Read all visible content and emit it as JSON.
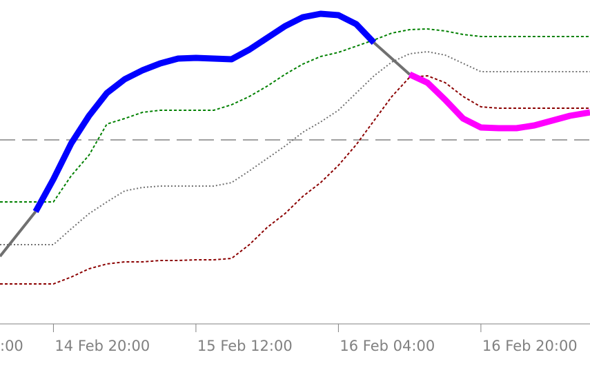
{
  "chart_data": {
    "type": "line",
    "xlim": [
      10,
      76.25
    ],
    "ylim": [
      0,
      470
    ],
    "xticks": [
      {
        "value": 0,
        "label": ":00"
      },
      {
        "value": 16,
        "label": "14 Feb 20:00"
      },
      {
        "value": 32,
        "label": "15 Feb 12:00"
      },
      {
        "value": 48,
        "label": "16 Feb 04:00"
      },
      {
        "value": 64,
        "label": "16 Feb 20:00"
      }
    ],
    "level": {
      "value": 267,
      "color": "#a0a0a0"
    },
    "series": [
      {
        "color": "#008000",
        "dash": "4 3",
        "width": 2,
        "x": [
          10,
          16,
          18,
          20,
          22,
          24,
          26,
          28,
          30,
          32,
          34,
          36,
          38,
          40,
          42,
          44,
          46,
          48,
          50,
          52,
          54,
          56,
          58,
          60,
          62,
          64,
          66,
          76.25
        ],
        "values": [
          177,
          177,
          215,
          245,
          290,
          298,
          307,
          310,
          310,
          310,
          310,
          318,
          330,
          345,
          362,
          377,
          388,
          394,
          403,
          412,
          422,
          427,
          428,
          425,
          420,
          417,
          417,
          417
        ]
      },
      {
        "color": "#707070",
        "dash": "2 3",
        "width": 2,
        "x": [
          10,
          16,
          18,
          20,
          22,
          24,
          26,
          28,
          30,
          32,
          34,
          36,
          38,
          40,
          42,
          44,
          46,
          48,
          50,
          52,
          54,
          56,
          58,
          60,
          62,
          64,
          66,
          76.25
        ],
        "values": [
          115,
          115,
          138,
          160,
          177,
          193,
          198,
          200,
          200,
          200,
          200,
          205,
          222,
          240,
          258,
          278,
          293,
          310,
          335,
          360,
          380,
          392,
          395,
          390,
          378,
          366,
          366,
          366
        ]
      },
      {
        "color": "#8b0000",
        "dash": "4 3",
        "width": 2,
        "x": [
          10,
          16,
          18,
          20,
          22,
          24,
          26,
          28,
          30,
          32,
          34,
          36,
          38,
          40,
          42,
          44,
          46,
          48,
          50,
          52,
          54,
          56,
          58,
          60,
          62,
          64,
          66,
          76.25
        ],
        "values": [
          58,
          58,
          68,
          80,
          87,
          90,
          90,
          92,
          92,
          93,
          93,
          95,
          115,
          140,
          160,
          185,
          205,
          230,
          260,
          295,
          330,
          358,
          360,
          350,
          330,
          315,
          313,
          313
        ]
      },
      {
        "color": "#707070",
        "width": 4,
        "x": [
          10,
          14
        ],
        "values": [
          98,
          163
        ]
      },
      {
        "color": "#0000ff",
        "width": 9,
        "x": [
          14,
          16,
          18,
          20,
          22,
          24,
          26,
          28,
          30,
          32,
          34,
          36,
          38,
          40,
          42,
          44,
          46,
          48,
          50,
          52
        ],
        "values": [
          163,
          210,
          262,
          302,
          335,
          355,
          368,
          378,
          385,
          386,
          385,
          384,
          398,
          415,
          432,
          445,
          450,
          448,
          435,
          408
        ]
      },
      {
        "color": "#707070",
        "width": 4,
        "x": [
          52,
          54,
          56
        ],
        "values": [
          408,
          385,
          362
        ]
      },
      {
        "color": "#ff00ff",
        "width": 9,
        "x": [
          56,
          58,
          60,
          62,
          64,
          66,
          68,
          70,
          72,
          74,
          76.25
        ],
        "values": [
          362,
          350,
          325,
          298,
          285,
          284,
          284,
          288,
          295,
          302,
          307
        ]
      }
    ]
  }
}
